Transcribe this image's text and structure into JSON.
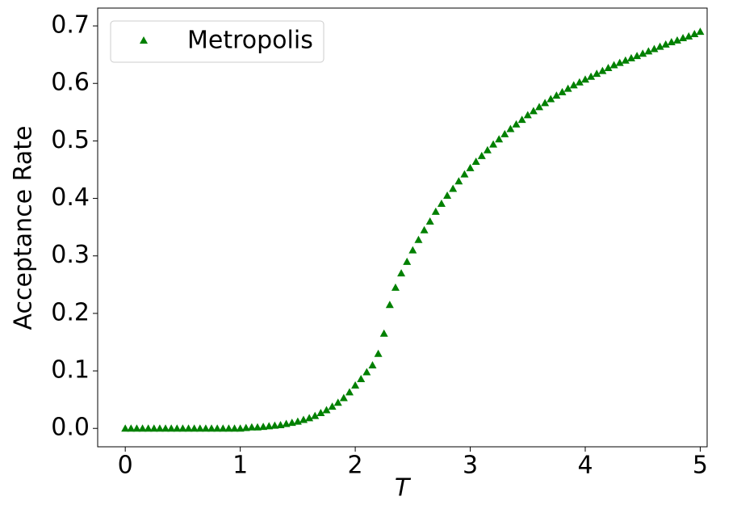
{
  "chart_data": {
    "type": "scatter",
    "x_label": "T",
    "y_label": "Acceptance Rate",
    "xlim": [
      -0.24,
      5.06
    ],
    "ylim": [
      -0.032,
      0.731
    ],
    "xticks": [
      0,
      1,
      2,
      3,
      4,
      5
    ],
    "yticks": [
      {
        "value": 0,
        "label": "0.0"
      },
      0.1,
      0.2,
      0.3,
      0.4,
      0.5,
      0.6,
      0.7
    ],
    "legend": "upper left",
    "series": [
      {
        "name": "Metropolis",
        "color": "#008000",
        "marker": "triangle",
        "x": [
          0,
          0.05,
          0.1,
          0.15,
          0.2,
          0.25,
          0.3,
          0.35,
          0.4,
          0.45,
          0.5,
          0.55,
          0.6,
          0.65,
          0.7,
          0.75,
          0.8,
          0.85,
          0.9,
          0.95,
          1,
          1.05,
          1.1,
          1.15,
          1.2,
          1.25,
          1.3,
          1.35,
          1.4,
          1.45,
          1.5,
          1.55,
          1.6,
          1.65,
          1.7,
          1.75,
          1.8,
          1.85,
          1.9,
          1.95,
          2,
          2.05,
          2.1,
          2.15,
          2.2,
          2.25,
          2.3,
          2.35,
          2.4,
          2.45,
          2.5,
          2.55,
          2.6,
          2.65,
          2.7,
          2.75,
          2.8,
          2.85,
          2.9,
          2.95,
          3,
          3.05,
          3.1,
          3.15,
          3.2,
          3.25,
          3.3,
          3.35,
          3.4,
          3.45,
          3.5,
          3.55,
          3.6,
          3.65,
          3.7,
          3.75,
          3.8,
          3.85,
          3.9,
          3.95,
          4,
          4.05,
          4.1,
          4.15,
          4.2,
          4.25,
          4.3,
          4.35,
          4.4,
          4.45,
          4.5,
          4.55,
          4.6,
          4.65,
          4.7,
          4.75,
          4.8,
          4.85,
          4.9,
          4.95,
          5
        ],
        "values": [
          0,
          0,
          0,
          0,
          0,
          0,
          0,
          0,
          0,
          0,
          0,
          0,
          0,
          0,
          0,
          0,
          0,
          0,
          0,
          0,
          0,
          0.001,
          0.002,
          0.002,
          0.003,
          0.004,
          0.005,
          0.006,
          0.008,
          0.01,
          0.012,
          0.015,
          0.018,
          0.022,
          0.027,
          0.032,
          0.038,
          0.045,
          0.053,
          0.063,
          0.075,
          0.086,
          0.098,
          0.11,
          0.13,
          0.165,
          0.215,
          0.245,
          0.27,
          0.29,
          0.31,
          0.328,
          0.345,
          0.36,
          0.377,
          0.391,
          0.405,
          0.417,
          0.43,
          0.442,
          0.453,
          0.464,
          0.474,
          0.484,
          0.494,
          0.503,
          0.512,
          0.521,
          0.529,
          0.537,
          0.545,
          0.552,
          0.559,
          0.566,
          0.573,
          0.579,
          0.585,
          0.591,
          0.597,
          0.602,
          0.607,
          0.612,
          0.617,
          0.622,
          0.627,
          0.632,
          0.636,
          0.64,
          0.644,
          0.648,
          0.652,
          0.656,
          0.66,
          0.664,
          0.668,
          0.672,
          0.675,
          0.679,
          0.682,
          0.686,
          0.69
        ]
      }
    ]
  }
}
